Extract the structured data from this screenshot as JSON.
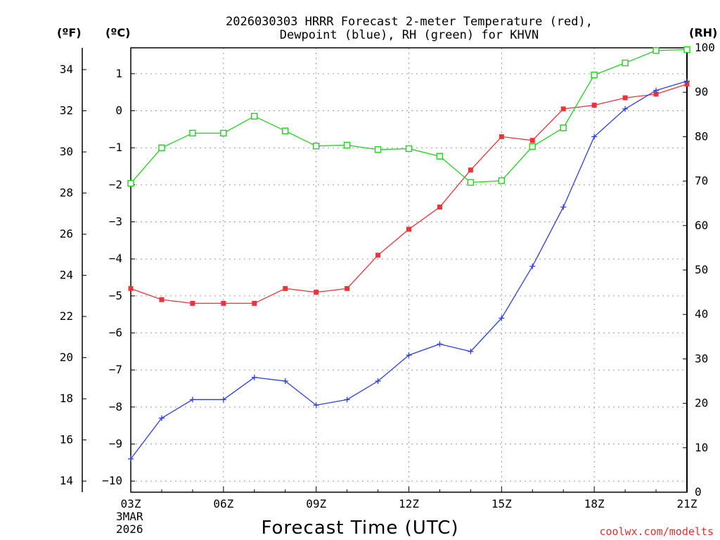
{
  "title_line1": "2026030303 HRRR Forecast 2-meter Temperature (red),",
  "title_line2": "Dewpoint (blue), RH (green) for KHVN",
  "xlabel": "Forecast Time (UTC)",
  "credit": "coolwx.com/modelts",
  "units": {
    "f": "(ºF)",
    "c": "(ºC)",
    "rh": "(RH)"
  },
  "date_label": [
    "3MAR",
    "2026"
  ],
  "colors": {
    "temperature": "#e8343a",
    "dewpoint": "#2c3fe0",
    "rh": "#1fd21f"
  },
  "chart_data": {
    "type": "line",
    "title": "2026030303 HRRR Forecast 2-meter Temperature (red), Dewpoint (blue), RH (green) for KHVN",
    "xlabel": "Forecast Time (UTC)",
    "x": [
      "03Z",
      "04Z",
      "05Z",
      "06Z",
      "07Z",
      "08Z",
      "09Z",
      "10Z",
      "11Z",
      "12Z",
      "13Z",
      "14Z",
      "15Z",
      "16Z",
      "17Z",
      "18Z",
      "19Z",
      "20Z",
      "21Z"
    ],
    "x_tick_labels": [
      "03Z",
      "06Z",
      "09Z",
      "12Z",
      "15Z",
      "18Z",
      "21Z"
    ],
    "axes": {
      "celsius": {
        "label": "(ºC)",
        "range": [
          -10.3,
          1.7
        ],
        "ticks": [
          -10,
          -9,
          -8,
          -7,
          -6,
          -5,
          -4,
          -3,
          -2,
          -1,
          0,
          1
        ],
        "tick_labels": [
          "−10",
          "−9",
          "−8",
          "−7",
          "−6",
          "−5",
          "−4",
          "−3",
          "−2",
          "−1",
          "0",
          "1"
        ]
      },
      "fahrenheit": {
        "label": "(ºF)",
        "ticks": [
          14,
          16,
          18,
          20,
          22,
          24,
          26,
          28,
          30,
          32,
          34
        ],
        "tick_labels": [
          "14",
          "16",
          "18",
          "20",
          "22",
          "24",
          "26",
          "28",
          "30",
          "32",
          "34"
        ]
      },
      "rh": {
        "label": "(RH)",
        "range": [
          0,
          100
        ],
        "ticks": [
          0,
          10,
          20,
          30,
          40,
          50,
          60,
          70,
          80,
          90,
          100
        ],
        "tick_labels": [
          "0",
          "10",
          "20",
          "30",
          "40",
          "50",
          "60",
          "70",
          "80",
          "90",
          "100"
        ]
      }
    },
    "series": [
      {
        "name": "2-meter Temperature",
        "units": "C",
        "color": "red",
        "marker": "filled-square",
        "values": [
          -4.8,
          -5.1,
          -5.2,
          -5.2,
          -5.2,
          -4.8,
          -4.9,
          -4.8,
          -3.9,
          -3.2,
          -2.6,
          -1.6,
          -0.7,
          -0.8,
          0.05,
          0.15,
          0.35,
          0.45,
          0.72
        ]
      },
      {
        "name": "Dewpoint",
        "units": "C",
        "color": "blue",
        "marker": "plus",
        "values": [
          -9.4,
          -8.3,
          -7.8,
          -7.8,
          -7.2,
          -7.3,
          -7.95,
          -7.8,
          -7.3,
          -6.6,
          -6.3,
          -6.5,
          -5.6,
          -4.2,
          -2.6,
          -0.7,
          0.05,
          0.55,
          0.8
        ]
      },
      {
        "name": "RH",
        "units": "%",
        "color": "green",
        "marker": "open-square",
        "values": [
          69.5,
          77.5,
          80.8,
          80.8,
          84.6,
          81.3,
          77.9,
          78.1,
          77.1,
          77.3,
          75.6,
          69.7,
          70.1,
          77.8,
          82.0,
          93.9,
          96.6,
          99.4,
          99.6
        ]
      }
    ]
  }
}
